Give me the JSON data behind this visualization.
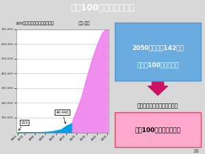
{
  "title": "人生100歳時代の設計図",
  "title_bg": "#3b7bbf",
  "chart_title": "100歳以上の人口の推移・推計",
  "y_label": "単位:万人",
  "years": [
    1963,
    1970,
    1975,
    1980,
    1985,
    1990,
    1995,
    2000,
    2005,
    2010,
    2015,
    2020,
    2025,
    2030,
    2035,
    2040,
    2045,
    2050
  ],
  "actual_values": [
    153,
    310,
    548,
    968,
    1740,
    3298,
    6378,
    12798,
    19769,
    44449,
    61000,
    0,
    0,
    0,
    0,
    0,
    0,
    0
  ],
  "forecast_values": [
    0,
    0,
    0,
    0,
    0,
    0,
    0,
    0,
    0,
    44449,
    61000,
    150000,
    250000,
    380000,
    500000,
    600000,
    680000,
    710000
  ],
  "ylim": [
    0,
    700000
  ],
  "yticks": [
    100000,
    200000,
    300000,
    400000,
    500000,
    600000,
    700000
  ],
  "ytick_labels": [
    "100,000",
    "200,000",
    "300,000",
    "400,000",
    "500,000",
    "600,000",
    "700,000"
  ],
  "actual_color": "#00a0e9",
  "forecast_color": "#ee82ee",
  "bg_color": "#d8d8d8",
  "text_box_color": "#6ab0de",
  "text_2050_line1": "2050年には、142人に",
  "text_2050_line2": "１人が100歳以上！！",
  "text_mibyou": "「未病を改善する」その先に",
  "text_jinsei": "人生100歳時代の設計図",
  "page_num": "28"
}
